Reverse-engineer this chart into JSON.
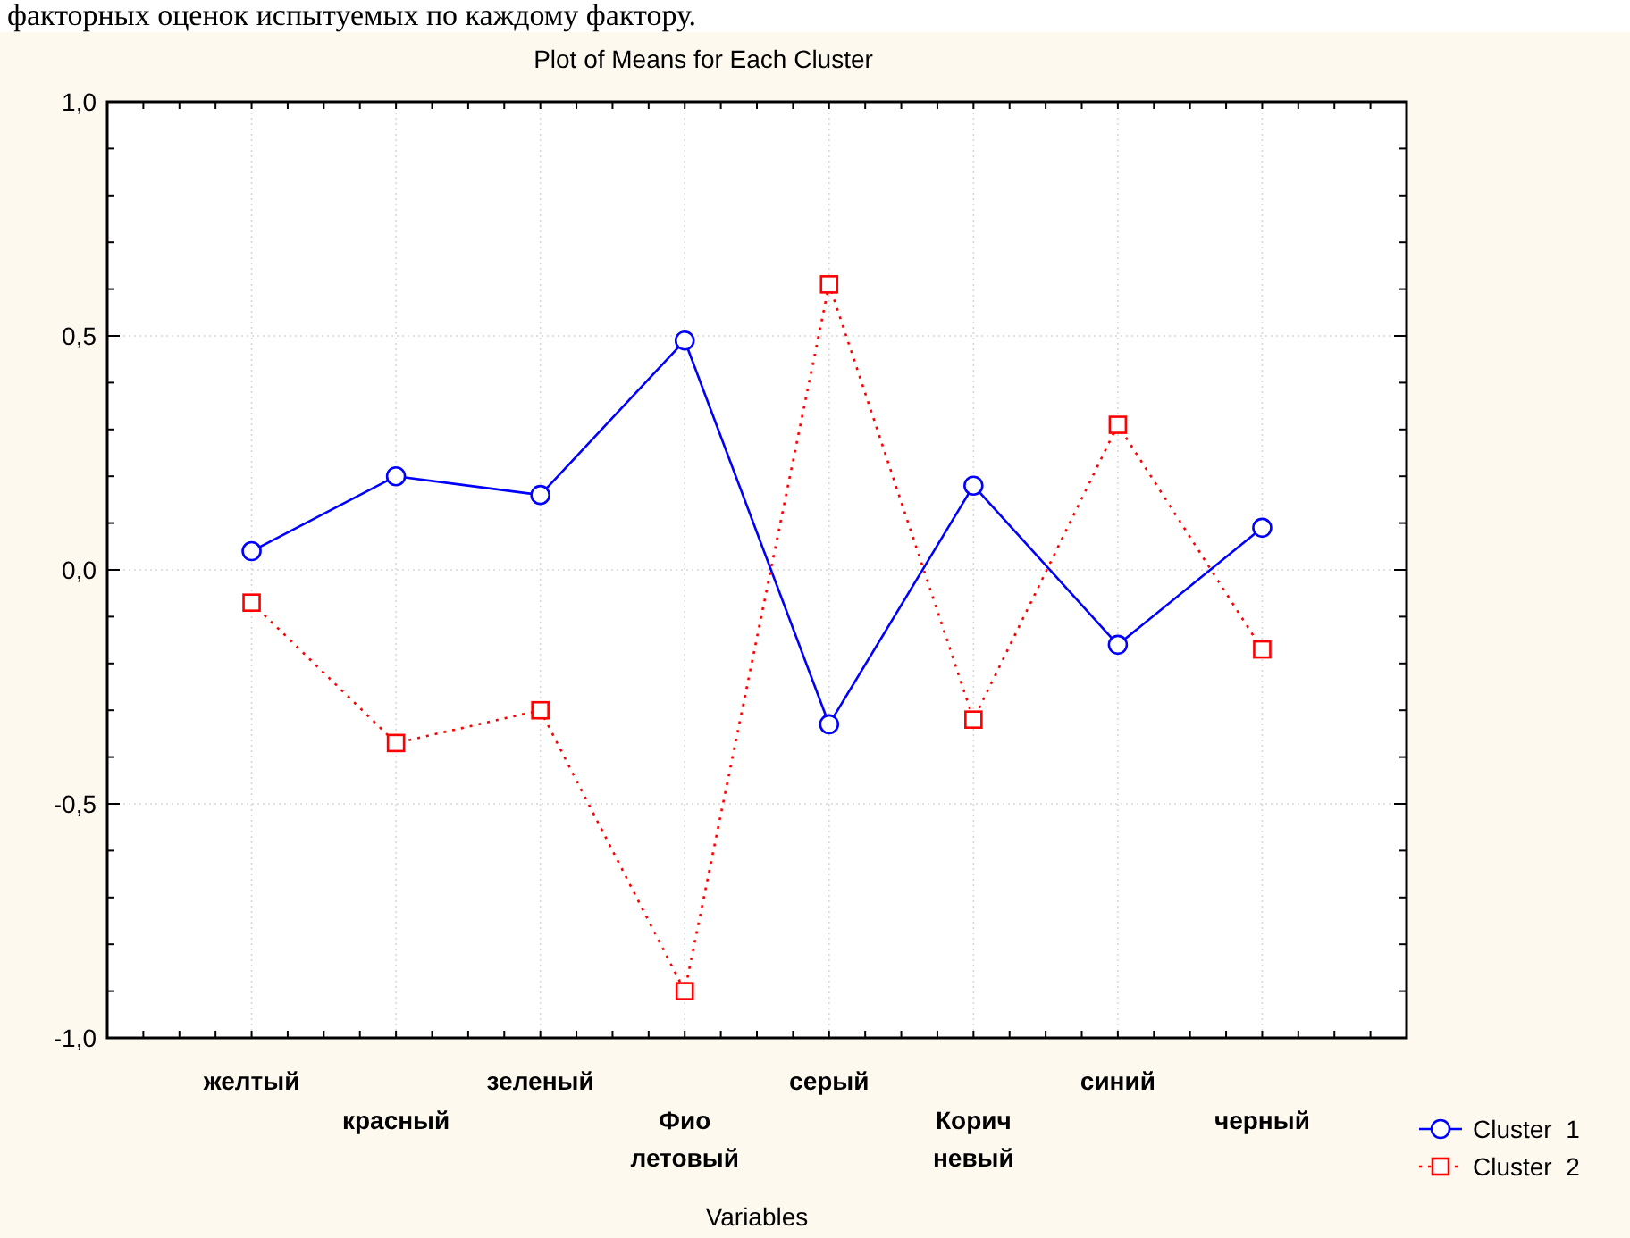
{
  "chart_data": {
    "type": "line",
    "title": "Plot of Means for Each Cluster",
    "xlabel": "Variables",
    "annotations": [
      "факторных оценок испытуемых по каждому фактору."
    ],
    "categories": [
      "желтый",
      "красный",
      "зеленый",
      "Фио\nлетовый",
      "серый",
      "Корич\nневый",
      "синий",
      "черный"
    ],
    "series": [
      {
        "name": "Cluster  1",
        "color": "#0000ff",
        "marker": "circle",
        "line_style": "solid",
        "values": [
          0.04,
          0.2,
          0.16,
          0.49,
          -0.33,
          0.18,
          -0.16,
          0.09
        ]
      },
      {
        "name": "Cluster  2",
        "color": "#ff0000",
        "marker": "square",
        "line_style": "dotted",
        "values": [
          -0.07,
          -0.37,
          -0.3,
          -0.9,
          0.61,
          -0.32,
          0.31,
          -0.17
        ]
      }
    ],
    "ylim": [
      -1,
      1
    ],
    "yticks": [
      {
        "value": -1,
        "label": "-1,0"
      },
      {
        "value": -0.5,
        "label": "-0,5"
      },
      {
        "value": 0,
        "label": "0,0"
      },
      {
        "value": 0.5,
        "label": "0,5"
      },
      {
        "value": 1,
        "label": "1,0"
      }
    ],
    "grid": true,
    "legend": "bottom right"
  }
}
